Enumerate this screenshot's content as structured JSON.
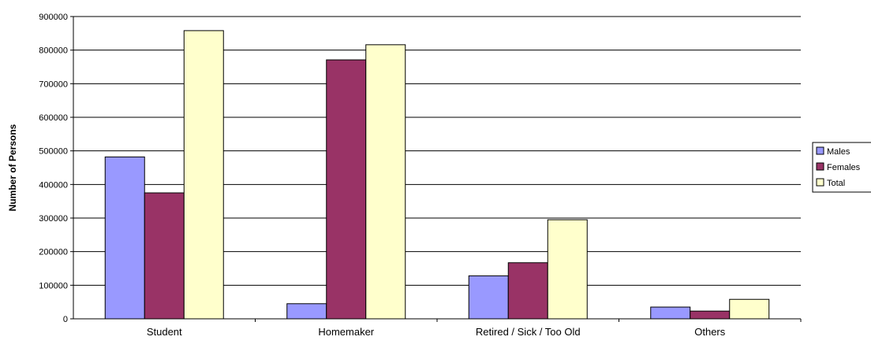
{
  "chart_data": {
    "type": "bar",
    "title": "",
    "xlabel": "",
    "ylabel": "Number of Persons",
    "categories": [
      "Student",
      "Homemaker",
      "Retired / Sick / Too Old",
      "Others"
    ],
    "series": [
      {
        "name": "Males",
        "color": "#9999FF",
        "values": [
          482000,
          45000,
          128000,
          35000
        ]
      },
      {
        "name": "Females",
        "color": "#993366",
        "values": [
          375000,
          771000,
          167000,
          23000
        ]
      },
      {
        "name": "Total",
        "color": "#FFFFCC",
        "values": [
          858000,
          816000,
          295000,
          58000
        ]
      }
    ],
    "ylim": [
      0,
      900000
    ],
    "yticks": [
      "0",
      "100000",
      "200000",
      "300000",
      "400000",
      "500000",
      "600000",
      "700000",
      "800000",
      "900000"
    ],
    "grid": true,
    "legend_position": "right"
  }
}
